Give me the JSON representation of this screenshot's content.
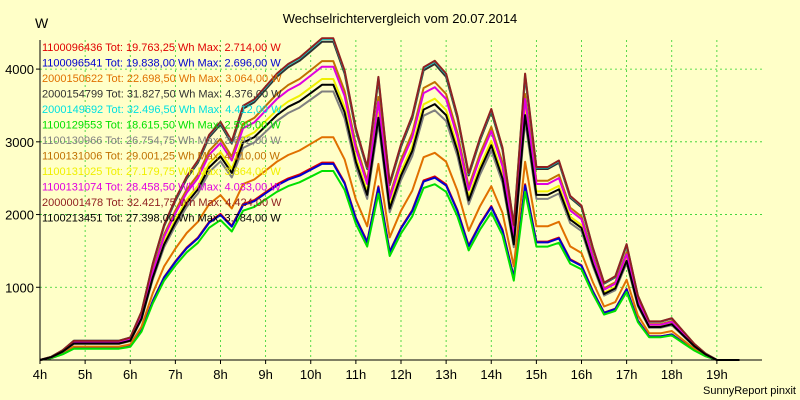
{
  "chart_data": {
    "type": "line",
    "title": "Wechselrichtervergleich vom 20.07.2014",
    "ylabel": "W",
    "credit": "SunnyReport pinxit",
    "x_start_hour": 4,
    "x_step_hours": 0.25,
    "xlim": [
      4,
      20
    ],
    "ylim": [
      0,
      4400
    ],
    "yticks": [
      1000,
      2000,
      3000,
      4000
    ],
    "xticks": [
      "4h",
      "5h",
      "6h",
      "7h",
      "8h",
      "9h",
      "10h",
      "11h",
      "12h",
      "13h",
      "14h",
      "15h",
      "16h",
      "17h",
      "18h",
      "19h"
    ],
    "x_tick_hours": [
      4,
      5,
      6,
      7,
      8,
      9,
      10,
      11,
      12,
      13,
      14,
      15,
      16,
      17,
      18,
      19
    ],
    "grid": true,
    "legend_position": "top-left",
    "base_profile": [
      0,
      0.01,
      0.03,
      0.06,
      0.06,
      0.06,
      0.06,
      0.06,
      0.07,
      0.15,
      0.3,
      0.42,
      0.5,
      0.57,
      0.62,
      0.7,
      0.74,
      0.68,
      0.79,
      0.81,
      0.85,
      0.89,
      0.92,
      0.94,
      0.97,
      1.0,
      1.0,
      0.9,
      0.72,
      0.6,
      0.88,
      0.55,
      0.67,
      0.76,
      0.91,
      0.93,
      0.89,
      0.76,
      0.58,
      0.69,
      0.78,
      0.66,
      0.42,
      0.89,
      0.6,
      0.6,
      0.62,
      0.51,
      0.48,
      0.35,
      0.24,
      0.26,
      0.36,
      0.2,
      0.12,
      0.12,
      0.13,
      0.09,
      0.05,
      0.02,
      0,
      0,
      0
    ],
    "series": [
      {
        "name": "1100096436 Tot: 19.763,25 Wh Max: 2.714,00 W",
        "color": "#e00000",
        "max": 2714
      },
      {
        "name": "1100096541 Tot: 19.838,00 Wh Max: 2.696,00 W",
        "color": "#0000d0",
        "max": 2696
      },
      {
        "name": "2000150622 Tot: 22.698,50 Wh Max: 3.064,00 W",
        "color": "#e07000",
        "max": 3064
      },
      {
        "name": "2000154799 Tot: 31.827,50 Wh Max: 4.376,00 W",
        "color": "#303030",
        "max": 4376
      },
      {
        "name": "2000149692 Tot: 32.496,50 Wh Max: 4.412,00 W",
        "color": "#00e0e0",
        "max": 4412
      },
      {
        "name": "1100129553 Tot: 18.615,50 Wh Max: 2.599,00 W",
        "color": "#00e000",
        "max": 2599
      },
      {
        "name": "1100130966 Tot: 26.754,75 Wh Max: 3.692,00 W",
        "color": "#808080",
        "max": 3692
      },
      {
        "name": "1100131006 Tot: 29.001,25 Wh Max: 4.110,00 W",
        "color": "#c07000",
        "max": 4110
      },
      {
        "name": "1100131025 Tot: 27.179,75 Wh Max: 3.864,00 W",
        "color": "#f0f000",
        "max": 3864
      },
      {
        "name": "1100131074 Tot: 28.458,50 Wh Max: 4.033,00 W",
        "color": "#e000e0",
        "max": 4033
      },
      {
        "name": "2000001478 Tot: 32.421,75 Wh Max: 4.424,00 W",
        "color": "#902020",
        "max": 4424
      },
      {
        "name": "1100213451 Tot: 27.398,00 Wh Max: 3.784,00 W",
        "color": "#000000",
        "max": 3784
      }
    ]
  }
}
